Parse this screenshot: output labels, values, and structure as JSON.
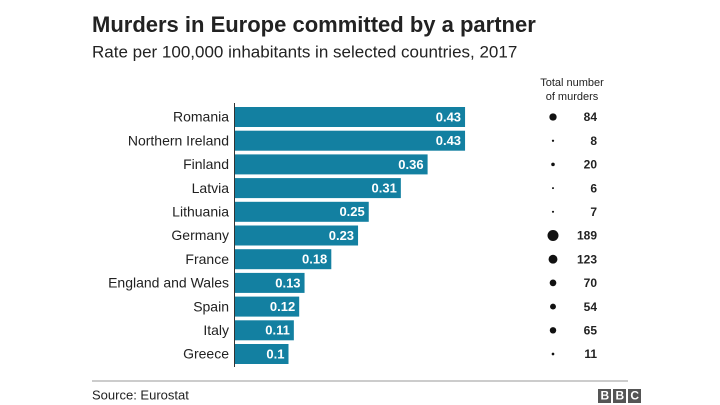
{
  "chart_data": {
    "type": "bar",
    "title": "Murders in Europe committed by a partner",
    "subtitle": "Rate per 100,000 inhabitants in selected countries, 2017",
    "categories": [
      "Romania",
      "Northern Ireland",
      "Finland",
      "Latvia",
      "Lithuania",
      "Germany",
      "France",
      "England and Wales",
      "Spain",
      "Italy",
      "Greece"
    ],
    "values": [
      0.43,
      0.43,
      0.36,
      0.31,
      0.25,
      0.23,
      0.18,
      0.13,
      0.12,
      0.11,
      0.1
    ],
    "color": "#1380a1",
    "totals_title": [
      "Total number",
      "of murders"
    ],
    "totals": [
      84,
      8,
      20,
      6,
      7,
      189,
      123,
      70,
      54,
      65,
      11
    ],
    "source": "Source: Eurostat",
    "logo": "BBC"
  }
}
